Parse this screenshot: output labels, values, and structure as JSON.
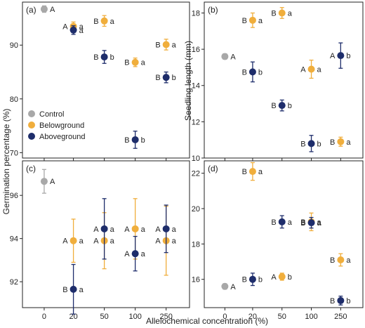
{
  "figure": {
    "x_axis_title": "Allelochemical concentration (%)",
    "y_axis_title_left": "Germination percentage (%)",
    "y_axis_title_right": "Seedling length (mm)"
  },
  "legend": {
    "items": [
      {
        "label": "Control",
        "color": "#a8a8a8"
      },
      {
        "label": "Belowground",
        "color": "#f0ae3c"
      },
      {
        "label": "Aboveground",
        "color": "#1e2d6b"
      }
    ]
  },
  "colors": {
    "control": "#a8a8a8",
    "belowground": "#f0ae3c",
    "aboveground": "#1e2d6b"
  },
  "chart_data": [
    {
      "panel": "(a)",
      "type": "scatter",
      "categories": [
        "0",
        "20",
        "50",
        "100",
        "250"
      ],
      "ylim": [
        69,
        98
      ],
      "yticks": [
        70,
        80,
        90
      ],
      "series": [
        {
          "name": "Control",
          "points": [
            {
              "cat": "0",
              "y": 96.7,
              "err": 0.6,
              "pre": "",
              "post": "A"
            }
          ]
        },
        {
          "name": "Belowground",
          "points": [
            {
              "cat": "20",
              "y": 93.5,
              "err": 0.8,
              "pre": "A",
              "post": "a"
            },
            {
              "cat": "50",
              "y": 94.5,
              "err": 1.0,
              "pre": "B",
              "post": "a"
            },
            {
              "cat": "100",
              "y": 86.8,
              "err": 0.8,
              "pre": "B",
              "post": "a"
            },
            {
              "cat": "250",
              "y": 90.1,
              "err": 1.0,
              "pre": "B",
              "post": "a"
            }
          ]
        },
        {
          "name": "Aboveground",
          "points": [
            {
              "cat": "20",
              "y": 92.8,
              "err": 0.8,
              "pre": "",
              "post": "a"
            },
            {
              "cat": "50",
              "y": 87.8,
              "err": 1.2,
              "pre": "B",
              "post": "b"
            },
            {
              "cat": "100",
              "y": 72.4,
              "err": 1.6,
              "pre": "B",
              "post": "b"
            },
            {
              "cat": "250",
              "y": 84.0,
              "err": 1.0,
              "pre": "B",
              "post": "b"
            }
          ]
        }
      ]
    },
    {
      "panel": "(b)",
      "type": "scatter",
      "categories": [
        "0",
        "20",
        "50",
        "100",
        "250"
      ],
      "ylim": [
        10,
        18.6
      ],
      "yticks": [
        10,
        12,
        14,
        16,
        18
      ],
      "series": [
        {
          "name": "Control",
          "points": [
            {
              "cat": "0",
              "y": 15.6,
              "err": 0.15,
              "pre": "",
              "post": "A"
            }
          ]
        },
        {
          "name": "Belowground",
          "points": [
            {
              "cat": "20",
              "y": 17.6,
              "err": 0.4,
              "pre": "B",
              "post": "a"
            },
            {
              "cat": "50",
              "y": 18.0,
              "err": 0.3,
              "pre": "B",
              "post": "a"
            },
            {
              "cat": "100",
              "y": 14.9,
              "err": 0.5,
              "pre": "A",
              "post": "a"
            },
            {
              "cat": "250",
              "y": 10.9,
              "err": 0.25,
              "pre": "B",
              "post": "a"
            }
          ]
        },
        {
          "name": "Aboveground",
          "points": [
            {
              "cat": "20",
              "y": 14.75,
              "err": 0.55,
              "pre": "B",
              "post": "b"
            },
            {
              "cat": "50",
              "y": 12.9,
              "err": 0.3,
              "pre": "B",
              "post": "b"
            },
            {
              "cat": "100",
              "y": 10.8,
              "err": 0.45,
              "pre": "B",
              "post": "b"
            },
            {
              "cat": "250",
              "y": 15.65,
              "err": 0.7,
              "pre": "A",
              "post": "b"
            }
          ]
        }
      ]
    },
    {
      "panel": "(c)",
      "type": "scatter",
      "categories": [
        "0",
        "20",
        "50",
        "100",
        "250"
      ],
      "ylim": [
        90.8,
        97.6
      ],
      "yticks": [
        92,
        94,
        96
      ],
      "series": [
        {
          "name": "Control",
          "points": [
            {
              "cat": "0",
              "y": 96.65,
              "err": 0.55,
              "pre": "",
              "post": "A"
            }
          ]
        },
        {
          "name": "Belowground",
          "points": [
            {
              "cat": "20",
              "y": 93.9,
              "err": 1.0,
              "pre": "A",
              "post": "a"
            },
            {
              "cat": "50",
              "y": 93.9,
              "err": 1.3,
              "pre": "A",
              "post": "a"
            },
            {
              "cat": "100",
              "y": 94.45,
              "err": 1.4,
              "pre": "A",
              "post": "a"
            },
            {
              "cat": "250",
              "y": 93.9,
              "err": 1.6,
              "pre": "A",
              "post": "a"
            }
          ]
        },
        {
          "name": "Aboveground",
          "points": [
            {
              "cat": "20",
              "y": 91.65,
              "err": 1.15,
              "pre": "B",
              "post": "a"
            },
            {
              "cat": "50",
              "y": 94.45,
              "err": 1.4,
              "pre": "A",
              "post": "a"
            },
            {
              "cat": "100",
              "y": 93.3,
              "err": 0.8,
              "pre": "A",
              "post": "a"
            },
            {
              "cat": "250",
              "y": 94.45,
              "err": 1.1,
              "pre": "A",
              "post": "a"
            }
          ]
        }
      ]
    },
    {
      "panel": "(d)",
      "type": "scatter",
      "categories": [
        "0",
        "20",
        "50",
        "100",
        "250"
      ],
      "ylim": [
        14.4,
        22.7
      ],
      "yticks": [
        16,
        18,
        20,
        22
      ],
      "series": [
        {
          "name": "Control",
          "points": [
            {
              "cat": "0",
              "y": 15.6,
              "err": 0.15,
              "pre": "",
              "post": "A"
            }
          ]
        },
        {
          "name": "Belowground",
          "points": [
            {
              "cat": "20",
              "y": 22.1,
              "err": 0.5,
              "pre": "B",
              "post": "a"
            },
            {
              "cat": "50",
              "y": 16.15,
              "err": 0.2,
              "pre": "A",
              "post": "b"
            },
            {
              "cat": "100",
              "y": 19.25,
              "err": 0.5,
              "pre": "B",
              "post": "a"
            },
            {
              "cat": "250",
              "y": 17.1,
              "err": 0.35,
              "pre": "B",
              "post": "a"
            }
          ]
        },
        {
          "name": "Aboveground",
          "points": [
            {
              "cat": "20",
              "y": 16.0,
              "err": 0.35,
              "pre": "B",
              "post": "b"
            },
            {
              "cat": "50",
              "y": 19.25,
              "err": 0.35,
              "pre": "B",
              "post": "a"
            },
            {
              "cat": "100",
              "y": 19.2,
              "err": 0.3,
              "pre": "B",
              "post": "a"
            },
            {
              "cat": "250",
              "y": 14.8,
              "err": 0.25,
              "pre": "B",
              "post": "b"
            }
          ]
        }
      ]
    }
  ]
}
